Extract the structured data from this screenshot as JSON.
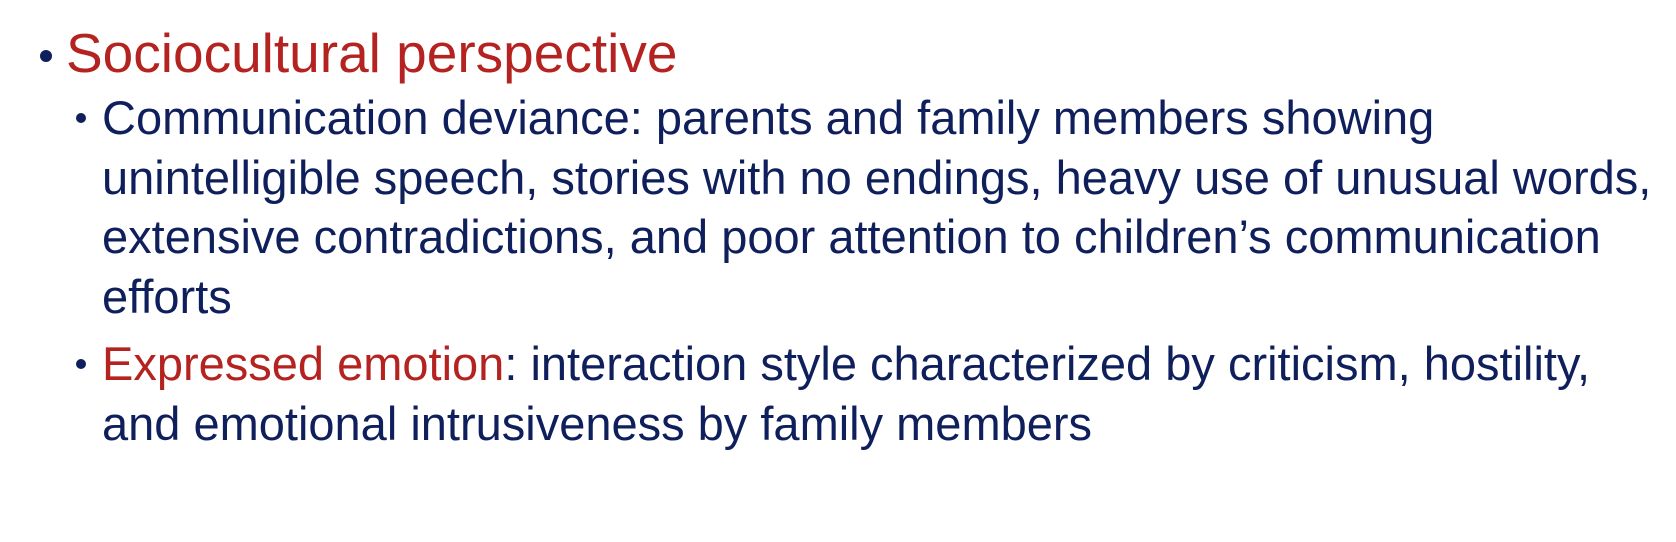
{
  "slide": {
    "heading": "Sociocultural perspective",
    "items": [
      {
        "text": "Communication deviance: parents and family members showing unintelligible speech, stories with no endings, heavy use of unusual words, extensive contradictions, and poor attention to children’s communication efforts"
      },
      {
        "term": "Expressed emotion",
        "text": ": interaction style characterized by criticism, hostility, and emotional intrusiveness by family members"
      }
    ]
  },
  "colors": {
    "accent": "#b4231f",
    "body_text": "#0f1f5c",
    "background": "#ffffff"
  }
}
